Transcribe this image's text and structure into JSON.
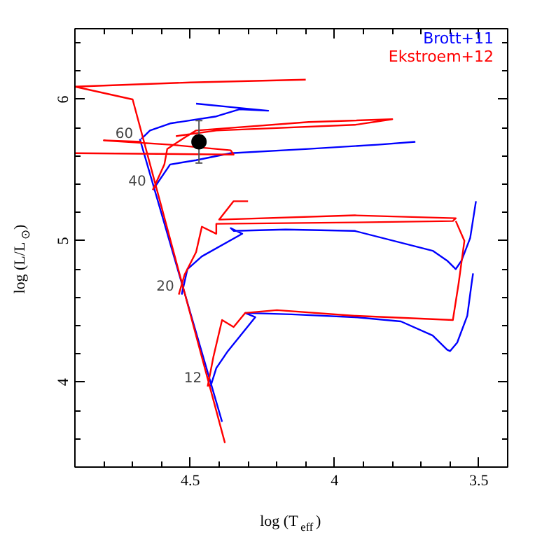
{
  "chart_data": {
    "type": "line",
    "xlabel": "log (T$_{eff}$)",
    "ylabel": "log (L/L$_{⊙}$)",
    "xlim": [
      4.9,
      3.4
    ],
    "ylim": [
      3.4,
      6.5
    ],
    "xticks": [
      4.5,
      4,
      3.5
    ],
    "yticks": [
      4,
      5,
      6
    ],
    "grid": false,
    "legend": "top right",
    "marker": "none",
    "line_style": "solid",
    "series": [
      {
        "name": "Brott+11",
        "color": "#0000ff",
        "x": [
          4.39,
          4.675,
          null,
          4.43,
          4.41,
          4.37,
          4.275,
          4.31,
          4.15,
          3.93,
          3.77,
          3.66,
          3.61,
          3.6,
          3.575,
          3.54,
          3.525,
          3.52,
          null,
          4.53,
          4.51,
          4.46,
          4.32,
          4.36,
          4.35,
          4.17,
          3.93,
          3.66,
          3.61,
          3.58,
          3.56,
          3.53,
          3.52,
          3.51,
          null,
          4.63,
          4.57,
          4.48,
          4.36,
          4.09,
          3.85,
          3.72,
          null,
          4.67,
          4.64,
          4.57,
          4.41,
          4.33,
          4.23,
          4.33,
          4.48
        ],
        "values": [
          3.72,
          5.72,
          null,
          3.97,
          4.1,
          4.22,
          4.46,
          4.49,
          4.48,
          4.46,
          4.43,
          4.33,
          4.23,
          4.22,
          4.28,
          4.47,
          4.7,
          4.77,
          null,
          4.62,
          4.8,
          4.89,
          5.05,
          5.09,
          5.07,
          5.08,
          5.07,
          4.93,
          4.86,
          4.8,
          4.86,
          5.02,
          5.15,
          5.28,
          null,
          5.36,
          5.54,
          5.57,
          5.62,
          5.65,
          5.68,
          5.7,
          null,
          5.72,
          5.78,
          5.83,
          5.88,
          5.93,
          5.92,
          5.94,
          5.97
        ]
      },
      {
        "name": "Ekstroem+12",
        "color": "#ff0000",
        "x": [
          4.38,
          4.7,
          4.9,
          4.5,
          4.1,
          null,
          4.44,
          4.42,
          4.39,
          4.35,
          4.31,
          4.2,
          3.93,
          3.59,
          3.57,
          3.55,
          3.58,
          null,
          4.54,
          4.52,
          4.48,
          4.46,
          4.41,
          4.41,
          3.93,
          3.59,
          3.58,
          3.93,
          4.4,
          4.35,
          4.3,
          null,
          4.63,
          4.59,
          4.58,
          4.52,
          4.48,
          4.09,
          3.8,
          3.93,
          4.41,
          4.55,
          null,
          4.67,
          4.8,
          4.57,
          4.36,
          4.35,
          4.9
        ],
        "values": [
          3.57,
          6.0,
          6.09,
          6.12,
          6.14,
          null,
          3.97,
          4.18,
          4.44,
          4.39,
          4.49,
          4.51,
          4.47,
          4.44,
          4.7,
          5.0,
          5.14,
          null,
          4.62,
          4.76,
          4.92,
          5.1,
          5.05,
          5.12,
          5.13,
          5.14,
          5.16,
          5.18,
          5.15,
          5.28,
          5.28,
          null,
          5.36,
          5.54,
          5.65,
          5.73,
          5.78,
          5.84,
          5.86,
          5.82,
          5.78,
          5.74,
          null,
          5.7,
          5.71,
          5.68,
          5.64,
          5.61,
          5.62
        ]
      },
      {
        "type": "scatter",
        "color": "#000000",
        "marker": "circle",
        "x": [
          4.47
        ],
        "values": [
          5.7
        ],
        "errors": [
          0.15
        ]
      }
    ],
    "annotations": [
      {
        "text": "60",
        "x": 4.674,
        "y": 5.7
      },
      {
        "text": "40",
        "x": 4.629,
        "y": 5.36
      },
      {
        "text": "20",
        "x": 4.532,
        "y": 4.62
      },
      {
        "text": "12",
        "x": 4.436,
        "y": 3.97
      }
    ]
  }
}
